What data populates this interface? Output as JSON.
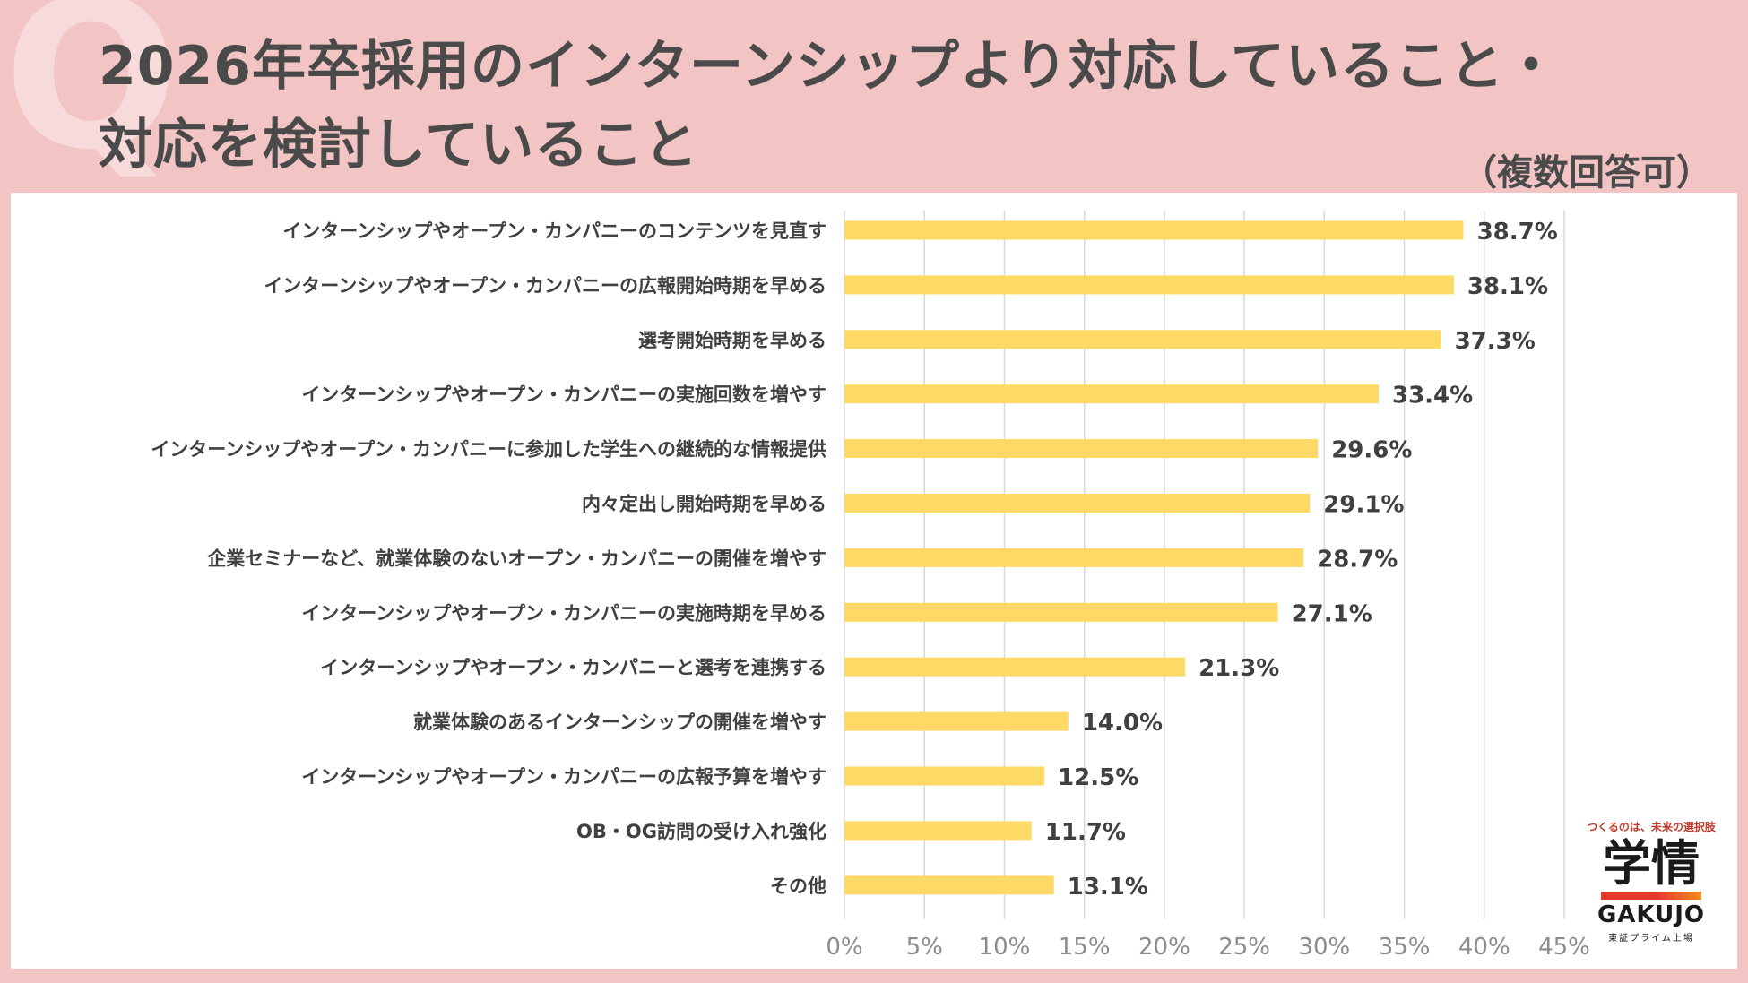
{
  "header": {
    "title_line1": "2026年卒採用のインターンシップより対応していること・",
    "title_line2": "対応を検討していること",
    "note": "（複数回答可）",
    "q_mark": "Q"
  },
  "colors": {
    "bar": "#FFD966",
    "background": "#F2C4C4",
    "grid": "#D9D9D9",
    "text": "#404040"
  },
  "chart_data": {
    "type": "bar",
    "orientation": "horizontal",
    "title": "2026年卒採用のインターンシップより対応していること・対応を検討していること",
    "categories": [
      "インターンシップやオープン・カンパニーのコンテンツを見直す",
      "インターンシップやオープン・カンパニーの広報開始時期を早める",
      "選考開始時期を早める",
      "インターンシップやオープン・カンパニーの実施回数を増やす",
      "インターンシップやオープン・カンパニーに参加した学生への継続的な情報提供",
      "内々定出し開始時期を早める",
      "企業セミナーなど、就業体験のないオープン・カンパニーの開催を増やす",
      "インターンシップやオープン・カンパニーの実施時期を早める",
      "インターンシップやオープン・カンパニーと選考を連携する",
      "就業体験のあるインターンシップの開催を増やす",
      "インターンシップやオープン・カンパニーの広報予算を増やす",
      "OB・OG訪問の受け入れ強化",
      "その他"
    ],
    "values": [
      38.7,
      38.1,
      37.3,
      33.4,
      29.6,
      29.1,
      28.7,
      27.1,
      21.3,
      14.0,
      12.5,
      11.7,
      13.1
    ],
    "value_labels": [
      "38.7%",
      "38.1%",
      "37.3%",
      "33.4%",
      "29.6%",
      "29.1%",
      "28.7%",
      "27.1%",
      "21.3%",
      "14.0%",
      "12.5%",
      "11.7%",
      "13.1%"
    ],
    "xlim": [
      0,
      45
    ],
    "xticks": [
      0,
      5,
      10,
      15,
      20,
      25,
      30,
      35,
      40,
      45
    ],
    "xtick_labels": [
      "0%",
      "5%",
      "10%",
      "15%",
      "20%",
      "25%",
      "30%",
      "35%",
      "40%",
      "45%"
    ],
    "grid": true,
    "legend": "none"
  },
  "logo": {
    "tagline": "つくるのは、未来の選択肢",
    "kanji": "学情",
    "english": "GAKUJO",
    "sub": "東証プライム上場"
  }
}
